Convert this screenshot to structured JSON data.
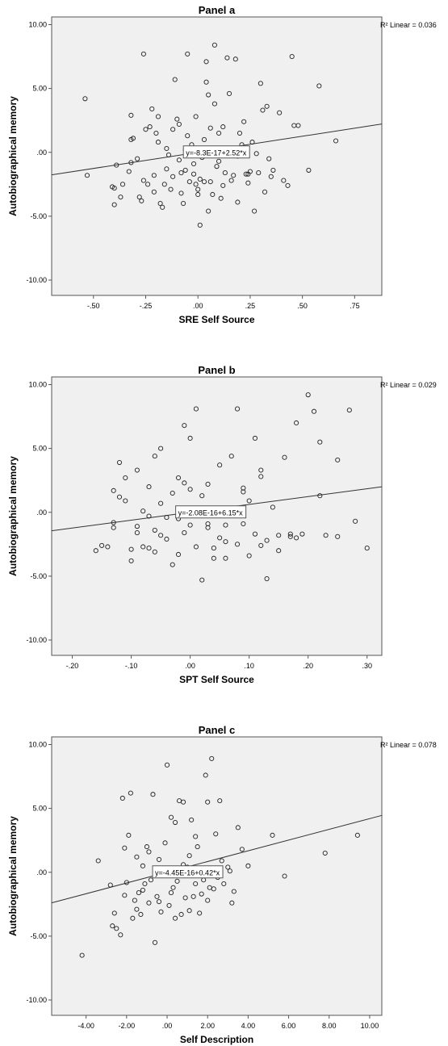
{
  "chart_data": [
    {
      "type": "scatter",
      "title": "Panel a",
      "xlabel": "SRE Self Source",
      "ylabel": "Autobiographical memory",
      "r2_label": "R² Linear = 0.036",
      "equation": "y=-8.3E-17+2.52*x",
      "fit": {
        "intercept": 0,
        "slope": 2.52
      },
      "xlim": [
        -0.7,
        0.88
      ],
      "ylim": [
        -11.2,
        10.6
      ],
      "xticks": [
        -0.5,
        -0.25,
        0,
        0.25,
        0.5,
        0.75
      ],
      "xtick_labels": [
        "-.50",
        "-.25",
        ".00",
        ".25",
        ".50",
        ".75"
      ],
      "yticks": [
        -10,
        -5,
        0,
        5,
        10
      ],
      "ytick_labels": [
        "-10.00",
        "-5.00",
        ".00",
        "5.00",
        "10.00"
      ],
      "points": [
        [
          -0.54,
          4.2
        ],
        [
          -0.53,
          -1.8
        ],
        [
          -0.41,
          -2.7
        ],
        [
          -0.4,
          -2.8
        ],
        [
          -0.4,
          -4.1
        ],
        [
          -0.39,
          -1.0
        ],
        [
          -0.37,
          -3.5
        ],
        [
          -0.33,
          -1.5
        ],
        [
          -0.32,
          2.9
        ],
        [
          -0.32,
          -0.8
        ],
        [
          -0.31,
          1.1
        ],
        [
          -0.32,
          1.0
        ],
        [
          -0.28,
          -3.5
        ],
        [
          -0.27,
          -3.8
        ],
        [
          -0.26,
          7.7
        ],
        [
          -0.25,
          1.8
        ],
        [
          -0.24,
          -2.5
        ],
        [
          -0.23,
          2.0
        ],
        [
          -0.22,
          3.4
        ],
        [
          -0.21,
          -1.8
        ],
        [
          -0.21,
          -3.1
        ],
        [
          -0.2,
          1.5
        ],
        [
          -0.19,
          2.8
        ],
        [
          -0.19,
          0.8
        ],
        [
          -0.18,
          -4.0
        ],
        [
          -0.17,
          -4.3
        ],
        [
          -0.16,
          -2.5
        ],
        [
          -0.15,
          -1.3
        ],
        [
          -0.14,
          -0.2
        ],
        [
          -0.13,
          -2.9
        ],
        [
          -0.12,
          1.8
        ],
        [
          -0.11,
          5.7
        ],
        [
          -0.1,
          2.6
        ],
        [
          -0.09,
          2.2
        ],
        [
          -0.09,
          -0.6
        ],
        [
          -0.08,
          -1.6
        ],
        [
          -0.08,
          -3.2
        ],
        [
          -0.07,
          -4.0
        ],
        [
          -0.06,
          0.2
        ],
        [
          -0.05,
          1.3
        ],
        [
          -0.05,
          7.7
        ],
        [
          -0.04,
          -2.3
        ],
        [
          -0.03,
          0.6
        ],
        [
          -0.02,
          -1.7
        ],
        [
          -0.01,
          2.8
        ],
        [
          -0.01,
          -2.5
        ],
        [
          0.0,
          -3.3
        ],
        [
          0.01,
          -2.1
        ],
        [
          0.01,
          -5.7
        ],
        [
          0.02,
          -0.4
        ],
        [
          0.03,
          1.0
        ],
        [
          0.03,
          -2.3
        ],
        [
          0.04,
          5.5
        ],
        [
          0.04,
          7.1
        ],
        [
          0.05,
          4.5
        ],
        [
          0.05,
          -4.6
        ],
        [
          0.06,
          -2.3
        ],
        [
          0.07,
          -3.3
        ],
        [
          0.08,
          8.4
        ],
        [
          0.08,
          3.8
        ],
        [
          0.09,
          -0.1
        ],
        [
          0.1,
          1.5
        ],
        [
          0.1,
          -0.7
        ],
        [
          0.11,
          -3.6
        ],
        [
          0.12,
          2.0
        ],
        [
          0.13,
          -1.6
        ],
        [
          0.14,
          7.4
        ],
        [
          0.15,
          4.6
        ],
        [
          0.15,
          0.3
        ],
        [
          0.16,
          -2.2
        ],
        [
          0.17,
          -1.8
        ],
        [
          0.18,
          7.3
        ],
        [
          0.19,
          -3.9
        ],
        [
          0.2,
          1.5
        ],
        [
          0.22,
          2.4
        ],
        [
          0.23,
          -1.7
        ],
        [
          0.24,
          -1.7
        ],
        [
          0.25,
          -1.5
        ],
        [
          0.26,
          0.8
        ],
        [
          0.27,
          -4.6
        ],
        [
          0.28,
          -0.1
        ],
        [
          0.29,
          -1.6
        ],
        [
          0.3,
          5.4
        ],
        [
          0.31,
          3.3
        ],
        [
          0.32,
          -3.1
        ],
        [
          0.33,
          3.6
        ],
        [
          0.34,
          -0.5
        ],
        [
          0.35,
          -1.9
        ],
        [
          0.36,
          -1.4
        ],
        [
          0.39,
          3.1
        ],
        [
          0.41,
          -2.2
        ],
        [
          0.43,
          -2.6
        ],
        [
          0.45,
          7.5
        ],
        [
          0.46,
          2.1
        ],
        [
          0.48,
          2.1
        ],
        [
          0.53,
          -1.4
        ],
        [
          0.58,
          5.2
        ],
        [
          0.66,
          0.9
        ],
        [
          -0.36,
          -2.5
        ],
        [
          -0.29,
          -0.5
        ],
        [
          -0.26,
          -2.2
        ],
        [
          -0.15,
          0.3
        ],
        [
          -0.12,
          -1.9
        ],
        [
          -0.06,
          -1.4
        ],
        [
          0.0,
          -2.9
        ],
        [
          0.06,
          1.9
        ],
        [
          0.12,
          -2.6
        ],
        [
          0.19,
          -0.3
        ],
        [
          0.21,
          0.6
        ],
        [
          0.24,
          -2.4
        ],
        [
          -0.02,
          -0.9
        ],
        [
          0.09,
          -1.1
        ]
      ]
    },
    {
      "type": "scatter",
      "title": "Panel b",
      "xlabel": "SPT Self Source",
      "ylabel": "Autobiographical memory",
      "r2_label": "R² Linear = 0.029",
      "equation": "y=-2.08E-16+6.15*x",
      "fit": {
        "intercept": 0,
        "slope": 6.15
      },
      "xlim": [
        -0.235,
        0.325
      ],
      "ylim": [
        -11.2,
        10.6
      ],
      "xticks": [
        -0.2,
        -0.1,
        0,
        0.1,
        0.2,
        0.3
      ],
      "xtick_labels": [
        "-.20",
        "-.10",
        ".00",
        ".10",
        ".20",
        ".30"
      ],
      "yticks": [
        -10,
        -5,
        0,
        5,
        10
      ],
      "ytick_labels": [
        "-10.00",
        "-5.00",
        ".00",
        "5.00",
        "10.00"
      ],
      "points": [
        [
          -0.16,
          -3.0
        ],
        [
          -0.15,
          -2.6
        ],
        [
          -0.14,
          -2.7
        ],
        [
          -0.13,
          -0.8
        ],
        [
          -0.13,
          1.7
        ],
        [
          -0.12,
          1.2
        ],
        [
          -0.12,
          3.9
        ],
        [
          -0.11,
          2.7
        ],
        [
          -0.11,
          0.9
        ],
        [
          -0.1,
          -3.8
        ],
        [
          -0.1,
          -2.9
        ],
        [
          -0.09,
          -1.6
        ],
        [
          -0.09,
          3.3
        ],
        [
          -0.08,
          0.1
        ],
        [
          -0.08,
          -2.7
        ],
        [
          -0.07,
          -2.8
        ],
        [
          -0.07,
          2.0
        ],
        [
          -0.06,
          4.4
        ],
        [
          -0.06,
          -1.4
        ],
        [
          -0.06,
          -3.1
        ],
        [
          -0.05,
          5.0
        ],
        [
          -0.05,
          -1.8
        ],
        [
          -0.04,
          -0.4
        ],
        [
          -0.04,
          -2.1
        ],
        [
          -0.03,
          -4.1
        ],
        [
          -0.03,
          1.5
        ],
        [
          -0.02,
          2.7
        ],
        [
          -0.02,
          -3.3
        ],
        [
          -0.01,
          6.8
        ],
        [
          -0.01,
          -1.6
        ],
        [
          0.0,
          5.8
        ],
        [
          0.0,
          -1.0
        ],
        [
          0.01,
          8.1
        ],
        [
          0.01,
          -2.7
        ],
        [
          0.02,
          1.3
        ],
        [
          0.02,
          -5.3
        ],
        [
          0.03,
          2.2
        ],
        [
          0.03,
          -1.2
        ],
        [
          0.04,
          0.1
        ],
        [
          0.04,
          -3.6
        ],
        [
          0.05,
          3.7
        ],
        [
          0.05,
          -2.0
        ],
        [
          0.06,
          -1.0
        ],
        [
          0.06,
          -3.6
        ],
        [
          0.07,
          4.4
        ],
        [
          0.08,
          8.1
        ],
        [
          0.08,
          -2.5
        ],
        [
          0.09,
          1.6
        ],
        [
          0.09,
          -0.9
        ],
        [
          0.1,
          -3.4
        ],
        [
          0.11,
          5.8
        ],
        [
          0.11,
          -1.7
        ],
        [
          0.12,
          3.3
        ],
        [
          0.12,
          2.8
        ],
        [
          0.12,
          -2.6
        ],
        [
          0.13,
          -5.2
        ],
        [
          0.14,
          0.4
        ],
        [
          0.15,
          -1.8
        ],
        [
          0.15,
          -3.0
        ],
        [
          0.16,
          4.3
        ],
        [
          0.17,
          -1.9
        ],
        [
          0.18,
          7.0
        ],
        [
          0.18,
          -2.0
        ],
        [
          0.19,
          -1.7
        ],
        [
          0.2,
          9.2
        ],
        [
          0.21,
          7.9
        ],
        [
          0.22,
          1.3
        ],
        [
          0.22,
          5.5
        ],
        [
          0.23,
          -1.8
        ],
        [
          0.25,
          4.1
        ],
        [
          0.25,
          -1.9
        ],
        [
          0.27,
          8.0
        ],
        [
          0.28,
          -0.7
        ],
        [
          0.3,
          -2.8
        ],
        [
          -0.09,
          -1.1
        ],
        [
          -0.05,
          0.7
        ],
        [
          -0.02,
          -0.5
        ],
        [
          0.0,
          1.8
        ],
        [
          0.03,
          -0.9
        ],
        [
          0.06,
          -2.3
        ],
        [
          0.09,
          1.9
        ],
        [
          0.13,
          -2.2
        ],
        [
          0.17,
          -1.7
        ],
        [
          -0.13,
          -1.2
        ],
        [
          -0.07,
          -0.3
        ],
        [
          -0.01,
          2.3
        ],
        [
          0.04,
          -2.8
        ],
        [
          0.1,
          0.9
        ]
      ]
    },
    {
      "type": "scatter",
      "title": "Panel c",
      "xlabel": "Self Description",
      "ylabel": "Autobiographical memory",
      "r2_label": "R² Linear = 0.078",
      "equation": "y=-4.45E-16+0.42*x",
      "fit": {
        "intercept": 0,
        "slope": 0.42
      },
      "xlim": [
        -5.7,
        10.6
      ],
      "ylim": [
        -11.2,
        10.6
      ],
      "xticks": [
        -4,
        -2,
        0,
        2,
        4,
        6,
        8,
        10
      ],
      "xtick_labels": [
        "-4.00",
        "-2.00",
        ".00",
        "2.00",
        "4.00",
        "6.00",
        "8.00",
        "10.00"
      ],
      "yticks": [
        -10,
        -5,
        0,
        5,
        10
      ],
      "ytick_labels": [
        "-10.00",
        "-5.00",
        ".00",
        "5.00",
        "10.00"
      ],
      "points": [
        [
          -4.2,
          -6.5
        ],
        [
          -3.4,
          0.9
        ],
        [
          -2.8,
          -1.0
        ],
        [
          -2.6,
          -3.2
        ],
        [
          -2.5,
          -4.4
        ],
        [
          -2.3,
          -4.9
        ],
        [
          -2.2,
          5.8
        ],
        [
          -2.1,
          1.9
        ],
        [
          -2.0,
          -0.8
        ],
        [
          -1.9,
          2.9
        ],
        [
          -1.8,
          6.2
        ],
        [
          -1.7,
          -3.6
        ],
        [
          -1.6,
          -2.2
        ],
        [
          -1.5,
          1.2
        ],
        [
          -1.4,
          -1.6
        ],
        [
          -1.3,
          -3.3
        ],
        [
          -1.2,
          0.5
        ],
        [
          -1.1,
          -0.9
        ],
        [
          -1.0,
          2.0
        ],
        [
          -0.9,
          -2.4
        ],
        [
          -0.8,
          -0.6
        ],
        [
          -0.7,
          6.1
        ],
        [
          -0.6,
          -5.5
        ],
        [
          -0.5,
          -1.9
        ],
        [
          -0.4,
          1.0
        ],
        [
          -0.3,
          -3.1
        ],
        [
          -0.2,
          -0.2
        ],
        [
          -0.1,
          2.3
        ],
        [
          0.0,
          8.4
        ],
        [
          0.1,
          -2.6
        ],
        [
          0.2,
          4.3
        ],
        [
          0.3,
          -1.2
        ],
        [
          0.4,
          3.9
        ],
        [
          0.5,
          -0.7
        ],
        [
          0.6,
          5.6
        ],
        [
          0.7,
          -3.3
        ],
        [
          0.8,
          5.5
        ],
        [
          0.9,
          -2.0
        ],
        [
          1.0,
          0.4
        ],
        [
          1.1,
          -3.0
        ],
        [
          1.2,
          4.1
        ],
        [
          1.3,
          -1.9
        ],
        [
          1.4,
          -0.9
        ],
        [
          1.5,
          2.0
        ],
        [
          1.6,
          -3.2
        ],
        [
          1.7,
          -1.7
        ],
        [
          1.8,
          -0.6
        ],
        [
          1.9,
          7.6
        ],
        [
          2.0,
          5.5
        ],
        [
          2.1,
          -1.2
        ],
        [
          2.2,
          8.9
        ],
        [
          2.3,
          -1.3
        ],
        [
          2.4,
          3.0
        ],
        [
          2.5,
          -0.4
        ],
        [
          2.6,
          5.6
        ],
        [
          2.8,
          -0.9
        ],
        [
          3.0,
          0.4
        ],
        [
          3.2,
          -2.4
        ],
        [
          3.3,
          -1.5
        ],
        [
          3.5,
          3.5
        ],
        [
          3.7,
          1.8
        ],
        [
          4.0,
          0.5
        ],
        [
          5.2,
          2.9
        ],
        [
          5.8,
          -0.3
        ],
        [
          7.8,
          1.5
        ],
        [
          9.4,
          2.9
        ],
        [
          -2.7,
          -4.2
        ],
        [
          -1.5,
          -2.9
        ],
        [
          -0.9,
          1.6
        ],
        [
          -0.4,
          -2.3
        ],
        [
          0.2,
          -1.6
        ],
        [
          0.8,
          0.6
        ],
        [
          1.4,
          2.8
        ],
        [
          2.0,
          -2.2
        ],
        [
          2.7,
          0.9
        ],
        [
          -1.2,
          -1.4
        ],
        [
          -0.6,
          -0.1
        ],
        [
          0.4,
          -3.6
        ],
        [
          1.1,
          1.3
        ],
        [
          -2.1,
          -1.8
        ],
        [
          0.0,
          0.0
        ],
        [
          3.1,
          0.1
        ]
      ]
    }
  ]
}
